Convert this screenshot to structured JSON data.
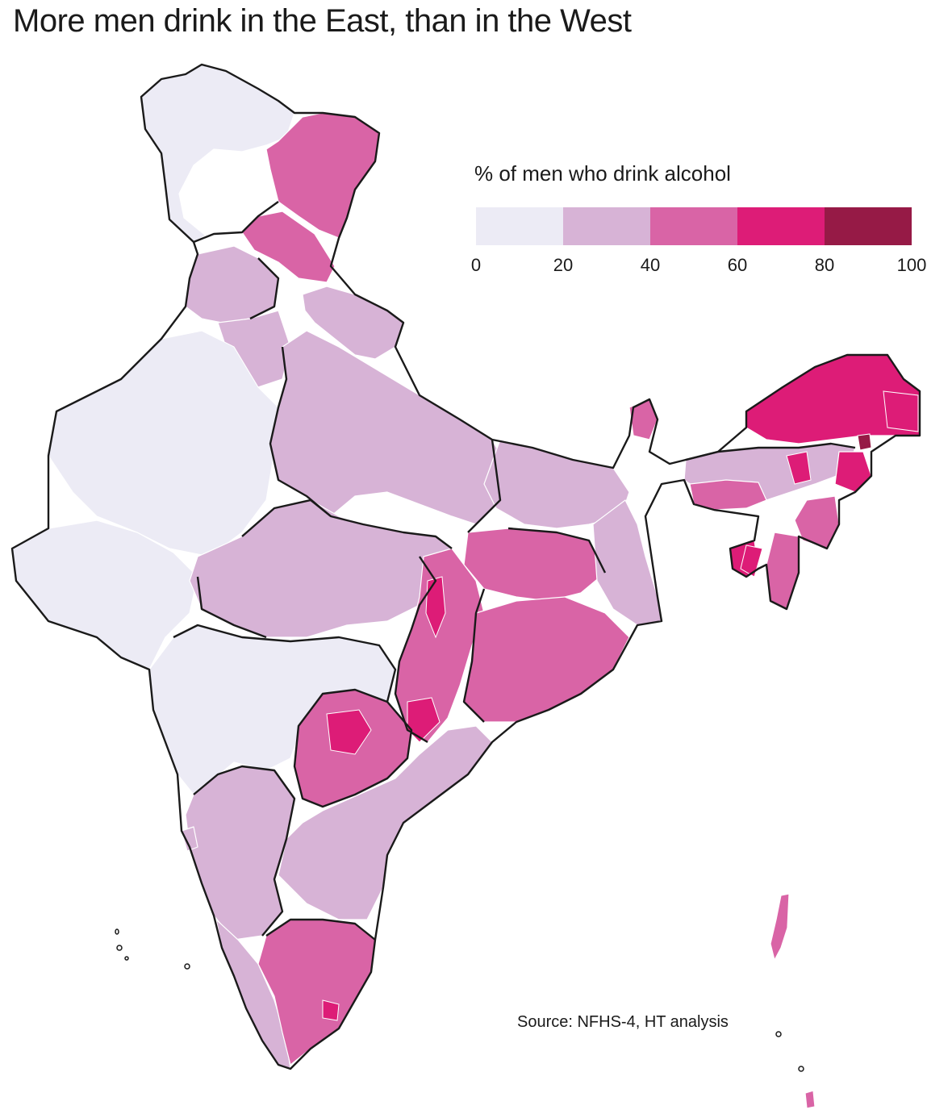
{
  "title": "More men drink in the East, than in the West",
  "legend": {
    "title": "% of men who drink alcohol",
    "bins": [
      {
        "from": 0,
        "to": 20,
        "color": "#ecebf5"
      },
      {
        "from": 20,
        "to": 40,
        "color": "#d7b3d6"
      },
      {
        "from": 40,
        "to": 60,
        "color": "#d964a6"
      },
      {
        "from": 60,
        "to": 80,
        "color": "#dd1c77"
      },
      {
        "from": 80,
        "to": 100,
        "color": "#961a46"
      }
    ],
    "ticks": [
      "0",
      "20",
      "40",
      "60",
      "80",
      "100"
    ]
  },
  "source": "Source: NFHS-4, HT analysis",
  "colors": {
    "state_border": "#1a1a1a",
    "district_border": "#ffffff"
  }
}
